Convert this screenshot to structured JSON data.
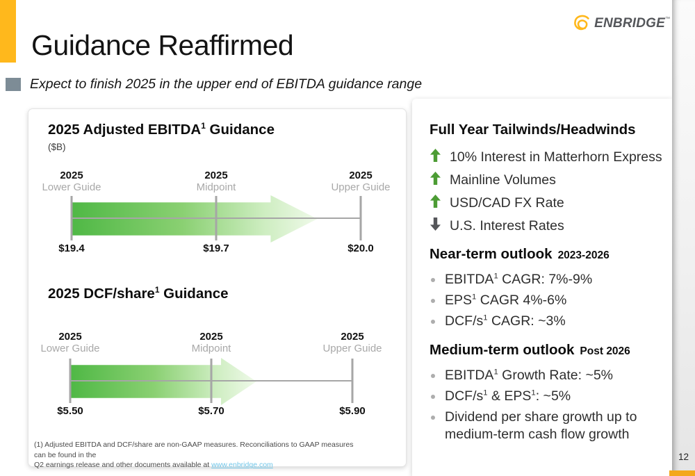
{
  "slide": {
    "title": "Guidance Reaffirmed",
    "subtitle": "Expect to finish 2025 in the upper end of EBITDA guidance range",
    "page_number": "12",
    "footnote_line1": "(1) Adjusted EBITDA and DCF/share are non-GAAP measures. Reconciliations to GAAP measures can be found in the",
    "footnote_line2_pre": "Q2 earnings release and other documents available at ",
    "footnote_link": "www.enbridge.com"
  },
  "logo": {
    "text": "ENBRIDGE",
    "tm": "™",
    "swirl_icon": "enbridge-swirl-icon"
  },
  "colors": {
    "brand_gold": "#FFB81C",
    "slate_accent": "#7D8C96",
    "guidance_arrow_green": "#4FB845",
    "tailwind_up_green": "#4C9C34",
    "headwind_down_gray": "#55565A",
    "axis_gray": "#A6A6A6",
    "muted_label_gray": "#A8A8A8",
    "link_blue": "#6FC5E8",
    "logo_gray": "#54565A"
  },
  "chart_data": [
    {
      "type": "range_arrow",
      "title_pre": "2025 Adjusted EBITDA",
      "title_sup": "1",
      "title_post": " Guidance",
      "units": "($B)",
      "points": [
        {
          "year": "2025",
          "label": "Lower Guide",
          "value": "$19.4",
          "numeric": 19.4
        },
        {
          "year": "2025",
          "label": "Midpoint",
          "value": "$19.7",
          "numeric": 19.7
        },
        {
          "year": "2025",
          "label": "Upper Guide",
          "value": "$20.0",
          "numeric": 20.0
        }
      ],
      "axis_range": [
        19.4,
        20.0
      ],
      "arrow_tip_pct": 85,
      "annotation": "green gradient arrow from lower guide fading toward upper guide"
    },
    {
      "type": "range_arrow",
      "title_pre": "2025 DCF/share",
      "title_sup": "1",
      "title_post": " Guidance",
      "points": [
        {
          "year": "2025",
          "label": "Lower Guide",
          "value": "$5.50",
          "numeric": 5.5
        },
        {
          "year": "2025",
          "label": "Midpoint",
          "value": "$5.70",
          "numeric": 5.7
        },
        {
          "year": "2025",
          "label": "Upper Guide",
          "value": "$5.90",
          "numeric": 5.9
        }
      ],
      "axis_range": [
        5.5,
        5.9
      ],
      "arrow_tip_pct": 66,
      "annotation": "green gradient arrow from lower guide just past midpoint"
    }
  ],
  "right_panel": {
    "tailwinds": {
      "heading": "Full Year Tailwinds/Headwinds",
      "items": [
        {
          "direction": "up",
          "icon": "up-arrow-icon",
          "text": "10% Interest in Matterhorn Express"
        },
        {
          "direction": "up",
          "icon": "up-arrow-icon",
          "text": "Mainline Volumes"
        },
        {
          "direction": "up",
          "icon": "up-arrow-icon",
          "text": "USD/CAD FX Rate"
        },
        {
          "direction": "down",
          "icon": "down-arrow-icon",
          "text": "U.S. Interest Rates"
        }
      ]
    },
    "near_term": {
      "heading": "Near-term outlook",
      "period": "2023-2026",
      "bullets": [
        {
          "pre": "EBITDA",
          "sup": "1",
          "mid": " CAGR: 7%-9%"
        },
        {
          "pre": "EPS",
          "sup": "1",
          "mid": " CAGR 4%-6%"
        },
        {
          "pre": "DCF/s",
          "sup": "1",
          "mid": " CAGR: ~3%"
        }
      ]
    },
    "medium_term": {
      "heading": "Medium-term outlook",
      "period": "Post 2026",
      "bullets": [
        {
          "pre": "EBITDA",
          "sup": "1",
          "mid": " Growth Rate: ~5%"
        },
        {
          "pre": "DCF/s",
          "sup": "1",
          "mid": " & EPS",
          "sup2": "1",
          "post": ": ~5%"
        },
        {
          "pre": "Dividend per share growth up to medium-term cash flow growth"
        }
      ]
    }
  }
}
